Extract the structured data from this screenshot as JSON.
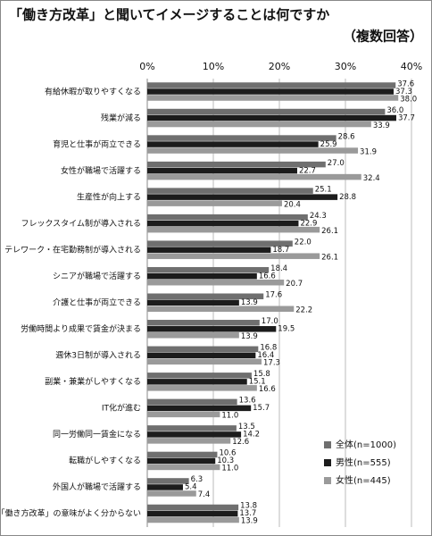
{
  "chart_data": {
    "type": "bar",
    "orientation": "horizontal",
    "title": "「働き方改革」と聞いてイメージすることは何ですか",
    "subtitle": "（複数回答）",
    "categories": [
      "有給休暇が取りやすくなる",
      "残業が減る",
      "育児と仕事が両立できる",
      "女性が職場で活躍する",
      "生産性が向上する",
      "フレックスタイム制が導入される",
      "テレワーク・在宅勤務制が導入される",
      "シニアが職場で活躍する",
      "介護と仕事が両立できる",
      "労働時間より成果で賃金が決まる",
      "週休3日制が導入される",
      "副業・兼業がしやすくなる",
      "IT化が進む",
      "同一労働同一賃金になる",
      "転職がしやすくなる",
      "外国人が職場で活躍する",
      "「働き方改革」の意味がよく分からない"
    ],
    "series": [
      {
        "name": "全体(n=1000)",
        "color": "#6f6f6f",
        "values": [
          37.6,
          36.0,
          28.6,
          27.0,
          25.1,
          24.3,
          22.0,
          18.4,
          17.6,
          17.0,
          16.8,
          15.8,
          13.6,
          13.5,
          10.6,
          6.3,
          13.8
        ],
        "value_labels": [
          "37.6",
          "36.0",
          "28.6",
          "27.0",
          "25.1",
          "24.3",
          "22.0",
          "18.4",
          "17.6",
          "17.0",
          "16.8",
          "15.8",
          "13.6",
          "13.5",
          "10.6",
          "6.3",
          "13.8"
        ]
      },
      {
        "name": "男性(n=555)",
        "color": "#1c1c1c",
        "values": [
          37.3,
          37.7,
          25.9,
          22.7,
          28.8,
          22.9,
          18.7,
          16.6,
          13.9,
          19.5,
          16.4,
          15.1,
          15.7,
          14.2,
          10.3,
          5.4,
          13.7
        ],
        "value_labels": [
          "37.3",
          "37.7",
          "25.9",
          "22.7",
          "28.8",
          "22.9",
          "18.7",
          "16.6",
          "13.9",
          "19.5",
          "16.4",
          "15.1",
          "15.7",
          "14.2",
          "10.3",
          "5.4",
          "13.7"
        ]
      },
      {
        "name": "女性(n=445)",
        "color": "#9a9a9a",
        "values": [
          38.0,
          33.9,
          31.9,
          32.4,
          20.4,
          26.1,
          26.1,
          20.7,
          22.2,
          13.9,
          17.3,
          16.6,
          11.0,
          12.6,
          11.0,
          7.4,
          13.9
        ],
        "value_labels": [
          "38.0",
          "33.9",
          "31.9",
          "32.4",
          "20.4",
          "26.1",
          "26.1",
          "20.7",
          "22.2",
          "13.9",
          "17.3",
          "16.6",
          "11.0",
          "12.6",
          "11.0",
          "7.4",
          "13.9"
        ]
      }
    ],
    "xlim": [
      0,
      40
    ],
    "xticks": [
      {
        "value": 0,
        "label": "0%"
      },
      {
        "value": 10,
        "label": "10%"
      },
      {
        "value": 20,
        "label": "20%"
      },
      {
        "value": 30,
        "label": "30%"
      },
      {
        "value": 40,
        "label": "40%"
      }
    ],
    "grid": true,
    "legend": "lower right"
  }
}
